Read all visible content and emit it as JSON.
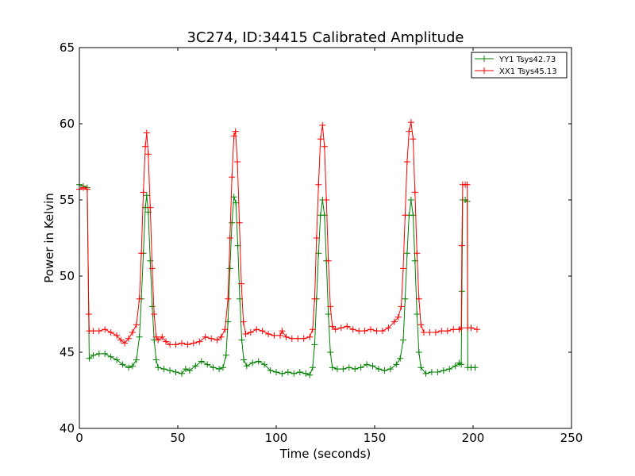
{
  "chart_data": {
    "type": "line",
    "title": "3C274, ID:34415 Calibrated Amplitude",
    "xlabel": "Time (seconds)",
    "ylabel": "Power in Kelvin",
    "xlim": [
      0,
      250
    ],
    "ylim": [
      40,
      65
    ],
    "xticks": [
      0,
      50,
      100,
      150,
      200,
      250
    ],
    "yticks": [
      40,
      45,
      50,
      55,
      60,
      65
    ],
    "grid": false,
    "legend_position": "top-right",
    "marker": "plus",
    "series": [
      {
        "name": "YY1 Tsys42.73",
        "color": "#008000",
        "points": [
          [
            0,
            56.0
          ],
          [
            2,
            55.9
          ],
          [
            4,
            55.8
          ],
          [
            5,
            44.6
          ],
          [
            7,
            44.8
          ],
          [
            10,
            44.9
          ],
          [
            13,
            44.9
          ],
          [
            16,
            44.7
          ],
          [
            19,
            44.5
          ],
          [
            22,
            44.2
          ],
          [
            25,
            44.0
          ],
          [
            27,
            44.1
          ],
          [
            29,
            44.5
          ],
          [
            30.5,
            46.0
          ],
          [
            31.5,
            48.5
          ],
          [
            32.5,
            51.5
          ],
          [
            33.5,
            54.5
          ],
          [
            34.2,
            55.3
          ],
          [
            35,
            54.2
          ],
          [
            36,
            51.0
          ],
          [
            37,
            48.0
          ],
          [
            38,
            45.8
          ],
          [
            39,
            44.5
          ],
          [
            40,
            44.0
          ],
          [
            43,
            43.9
          ],
          [
            46,
            43.8
          ],
          [
            49,
            43.7
          ],
          [
            52,
            43.6
          ],
          [
            54,
            43.9
          ],
          [
            56,
            43.8
          ],
          [
            59,
            44.1
          ],
          [
            62,
            44.4
          ],
          [
            65,
            44.2
          ],
          [
            68,
            44.0
          ],
          [
            71,
            43.9
          ],
          [
            73,
            44.0
          ],
          [
            74.5,
            44.8
          ],
          [
            75.5,
            47.0
          ],
          [
            76.5,
            50.5
          ],
          [
            77.5,
            53.5
          ],
          [
            78.5,
            55.2
          ],
          [
            79.5,
            54.8
          ],
          [
            80.5,
            52.0
          ],
          [
            81.5,
            48.5
          ],
          [
            82.5,
            45.8
          ],
          [
            83.5,
            44.5
          ],
          [
            85,
            44.1
          ],
          [
            88,
            44.3
          ],
          [
            91,
            44.4
          ],
          [
            94,
            44.2
          ],
          [
            97,
            43.8
          ],
          [
            100,
            43.7
          ],
          [
            103,
            43.6
          ],
          [
            106,
            43.7
          ],
          [
            109,
            43.6
          ],
          [
            112,
            43.7
          ],
          [
            115,
            43.6
          ],
          [
            117,
            43.5
          ],
          [
            118.5,
            44.0
          ],
          [
            119.5,
            45.5
          ],
          [
            120.5,
            48.5
          ],
          [
            121.5,
            51.5
          ],
          [
            122.5,
            54.0
          ],
          [
            123.5,
            55.0
          ],
          [
            124.5,
            54.0
          ],
          [
            125.5,
            51.0
          ],
          [
            126.5,
            47.5
          ],
          [
            127.5,
            45.0
          ],
          [
            128.5,
            44.0
          ],
          [
            131,
            43.9
          ],
          [
            134,
            43.9
          ],
          [
            137,
            44.0
          ],
          [
            140,
            43.9
          ],
          [
            143,
            44.0
          ],
          [
            146,
            44.2
          ],
          [
            149,
            44.1
          ],
          [
            152,
            43.9
          ],
          [
            155,
            43.8
          ],
          [
            158,
            43.9
          ],
          [
            161,
            44.2
          ],
          [
            163,
            44.6
          ],
          [
            164.5,
            45.8
          ],
          [
            165.5,
            48.5
          ],
          [
            166.5,
            51.5
          ],
          [
            167.5,
            54.0
          ],
          [
            168.5,
            55.0
          ],
          [
            169.5,
            54.0
          ],
          [
            170.5,
            51.0
          ],
          [
            171.5,
            47.5
          ],
          [
            172.5,
            45.0
          ],
          [
            173.5,
            44.0
          ],
          [
            176,
            43.6
          ],
          [
            179,
            43.7
          ],
          [
            182,
            43.7
          ],
          [
            185,
            43.8
          ],
          [
            188,
            43.9
          ],
          [
            191,
            44.1
          ],
          [
            193,
            44.3
          ],
          [
            194,
            44.2
          ],
          [
            194.3,
            49.0
          ],
          [
            194.7,
            55.0
          ],
          [
            196,
            55.0
          ],
          [
            197,
            54.9
          ],
          [
            197.3,
            44.0
          ],
          [
            199,
            44.0
          ],
          [
            201,
            44.0
          ]
        ]
      },
      {
        "name": "XX1 Tsys45.13",
        "color": "#ff0000",
        "points": [
          [
            0,
            55.7
          ],
          [
            2,
            55.8
          ],
          [
            4,
            55.7
          ],
          [
            4.8,
            47.5
          ],
          [
            5,
            46.4
          ],
          [
            7,
            46.4
          ],
          [
            10,
            46.4
          ],
          [
            13,
            46.5
          ],
          [
            16,
            46.3
          ],
          [
            19,
            46.1
          ],
          [
            21,
            45.8
          ],
          [
            23,
            45.6
          ],
          [
            25,
            45.9
          ],
          [
            27,
            46.3
          ],
          [
            29,
            46.8
          ],
          [
            30.5,
            48.5
          ],
          [
            31.5,
            51.5
          ],
          [
            32.5,
            55.5
          ],
          [
            33.5,
            58.5
          ],
          [
            34.2,
            59.4
          ],
          [
            35,
            58.0
          ],
          [
            36,
            54.5
          ],
          [
            37,
            50.5
          ],
          [
            38,
            47.5
          ],
          [
            39,
            46.0
          ],
          [
            40,
            45.8
          ],
          [
            42,
            46.0
          ],
          [
            44,
            45.7
          ],
          [
            46,
            45.5
          ],
          [
            49,
            45.5
          ],
          [
            52,
            45.6
          ],
          [
            55,
            45.5
          ],
          [
            58,
            45.6
          ],
          [
            61,
            45.7
          ],
          [
            64,
            46.0
          ],
          [
            67,
            45.9
          ],
          [
            70,
            45.8
          ],
          [
            72,
            46.0
          ],
          [
            74,
            46.5
          ],
          [
            75.5,
            48.5
          ],
          [
            76.5,
            52.5
          ],
          [
            77.5,
            56.5
          ],
          [
            78.5,
            59.2
          ],
          [
            79.3,
            59.5
          ],
          [
            80.3,
            57.5
          ],
          [
            81.3,
            53.5
          ],
          [
            82.3,
            49.5
          ],
          [
            83.3,
            47.0
          ],
          [
            84.5,
            46.2
          ],
          [
            87,
            46.3
          ],
          [
            90,
            46.5
          ],
          [
            93,
            46.4
          ],
          [
            96,
            46.2
          ],
          [
            99,
            46.1
          ],
          [
            102,
            46.1
          ],
          [
            103,
            46.4
          ],
          [
            105,
            46.0
          ],
          [
            108,
            45.9
          ],
          [
            111,
            45.9
          ],
          [
            114,
            45.9
          ],
          [
            117,
            46.0
          ],
          [
            118.5,
            46.5
          ],
          [
            119.5,
            48.5
          ],
          [
            120.5,
            52.5
          ],
          [
            121.5,
            56.0
          ],
          [
            122.5,
            59.0
          ],
          [
            123.5,
            59.9
          ],
          [
            124.5,
            58.5
          ],
          [
            125.5,
            55.0
          ],
          [
            126.5,
            51.0
          ],
          [
            127.5,
            48.0
          ],
          [
            128.5,
            46.7
          ],
          [
            130,
            46.5
          ],
          [
            133,
            46.6
          ],
          [
            136,
            46.7
          ],
          [
            139,
            46.5
          ],
          [
            142,
            46.4
          ],
          [
            145,
            46.4
          ],
          [
            148,
            46.5
          ],
          [
            151,
            46.4
          ],
          [
            154,
            46.4
          ],
          [
            157,
            46.6
          ],
          [
            160,
            47.0
          ],
          [
            162,
            47.3
          ],
          [
            163.5,
            48.0
          ],
          [
            164.5,
            50.5
          ],
          [
            165.5,
            54.0
          ],
          [
            166.5,
            57.5
          ],
          [
            167.5,
            59.5
          ],
          [
            168.5,
            60.1
          ],
          [
            169.5,
            59.0
          ],
          [
            170.5,
            55.5
          ],
          [
            171.5,
            51.5
          ],
          [
            172.5,
            48.5
          ],
          [
            173.5,
            46.8
          ],
          [
            175,
            46.3
          ],
          [
            178,
            46.3
          ],
          [
            181,
            46.3
          ],
          [
            184,
            46.4
          ],
          [
            187,
            46.4
          ],
          [
            190,
            46.5
          ],
          [
            193,
            46.5
          ],
          [
            194,
            46.6
          ],
          [
            194.3,
            52.0
          ],
          [
            194.7,
            56.0
          ],
          [
            196,
            56.0
          ],
          [
            197,
            56.0
          ],
          [
            197.3,
            46.6
          ],
          [
            199,
            46.6
          ],
          [
            202,
            46.5
          ]
        ]
      }
    ]
  }
}
